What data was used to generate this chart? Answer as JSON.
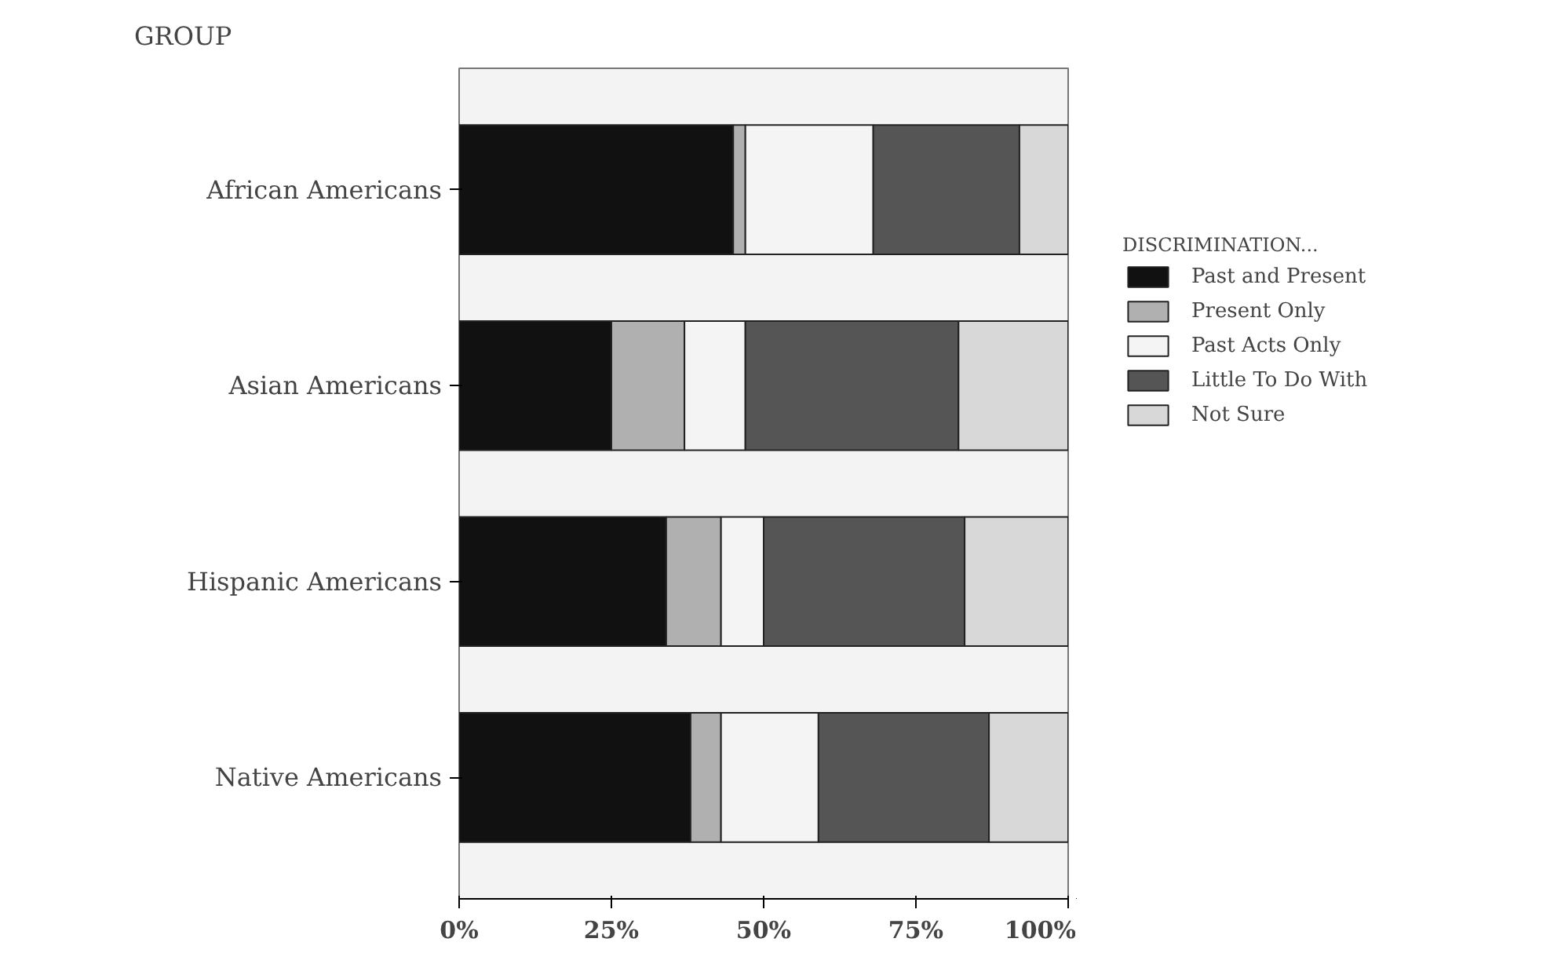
{
  "chart_data": {
    "type": "bar",
    "orientation": "horizontal",
    "stacked": true,
    "ylabel": "GROUP",
    "legend_title": "DISCRIMINATION...",
    "legend": "right",
    "categories": [
      "African Americans",
      "Asian Americans",
      "Hispanic Americans",
      "Native Americans"
    ],
    "series": [
      {
        "name": "Past and Present",
        "color": "#111111",
        "values": [
          45,
          25,
          34,
          38
        ]
      },
      {
        "name": "Present Only",
        "color": "#b0b0b0",
        "values": [
          2,
          12,
          9,
          5
        ]
      },
      {
        "name": "Past Acts Only",
        "color": "#f4f4f4",
        "values": [
          21,
          10,
          7,
          16
        ]
      },
      {
        "name": "Little To Do With",
        "color": "#555555",
        "values": [
          24,
          35,
          33,
          28
        ]
      },
      {
        "name": "Not Sure",
        "color": "#d8d8d8",
        "values": [
          8,
          18,
          17,
          13
        ]
      }
    ],
    "xlim": [
      0,
      100
    ],
    "xticks": [
      {
        "value": 0,
        "label": "0%"
      },
      {
        "value": 25,
        "label": "25%"
      },
      {
        "value": 50,
        "label": "50%"
      },
      {
        "value": 75,
        "label": "75%"
      },
      {
        "value": 100,
        "label": "100%"
      }
    ],
    "grid": false
  }
}
